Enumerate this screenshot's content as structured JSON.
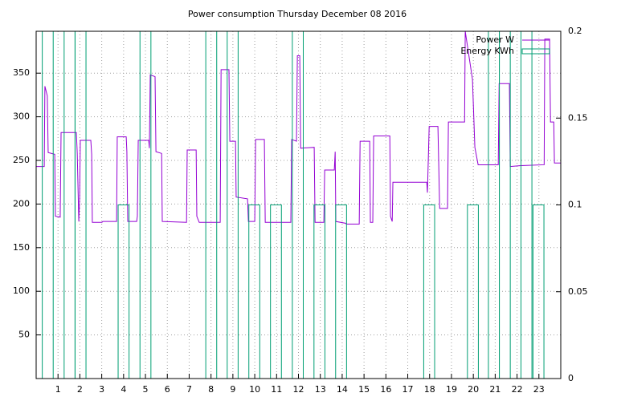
{
  "chart_data": {
    "type": "line-boxes",
    "title": "Power consumption Thursday December 08 2016",
    "xlim": [
      0,
      24
    ],
    "xticks": [
      1,
      2,
      3,
      4,
      5,
      6,
      7,
      8,
      9,
      10,
      11,
      12,
      13,
      14,
      15,
      16,
      17,
      18,
      19,
      20,
      21,
      22,
      23
    ],
    "ylim": [
      0,
      398
    ],
    "yticks": [
      50,
      100,
      150,
      200,
      250,
      300,
      350
    ],
    "y2lim": [
      0,
      0.2
    ],
    "y2ticks": [
      0,
      0.05,
      0.1,
      0.15,
      0.2
    ],
    "grid": true,
    "legend": "top-right",
    "series": [
      {
        "name": "Power W",
        "color": "#9400d3",
        "kind": "line",
        "x": [
          0,
          0.37,
          0.4,
          0.51,
          0.55,
          0.85,
          0.88,
          1.1,
          1.14,
          1.84,
          1.88,
          1.95,
          1.99,
          2.02,
          2.5,
          2.54,
          2.57,
          3.01,
          3.05,
          3.68,
          3.71,
          4.12,
          4.15,
          4.19,
          4.6,
          4.63,
          4.67,
          5.15,
          5.18,
          5.22,
          5.44,
          5.48,
          5.74,
          5.77,
          6.88,
          6.91,
          7.32,
          7.35,
          7.46,
          8.42,
          8.46,
          8.82,
          8.86,
          9.12,
          9.15,
          9.67,
          9.71,
          10.0,
          10.04,
          10.44,
          10.48,
          11.65,
          11.69,
          11.91,
          11.95,
          12.06,
          12.1,
          12.72,
          12.76,
          13.16,
          13.2,
          13.64,
          13.68,
          13.71,
          14.15,
          14.19,
          14.78,
          14.82,
          15.26,
          15.29,
          15.4,
          15.44,
          16.18,
          16.21,
          16.29,
          16.32,
          17.87,
          17.9,
          17.98,
          18.38,
          18.46,
          18.82,
          18.86,
          19.6,
          19.63,
          19.96,
          20.07,
          20.22,
          21.14,
          21.18,
          21.65,
          21.69,
          22.17,
          23.24,
          23.27,
          23.49,
          23.53,
          23.68,
          23.71,
          24
        ],
        "values": [
          243,
          243,
          335,
          324,
          259,
          257,
          186,
          185,
          282,
          282,
          258,
          180,
          208,
          273,
          273,
          257,
          179,
          179,
          180,
          180,
          277,
          277,
          260,
          180,
          180,
          186,
          273,
          273,
          264,
          348,
          346,
          260,
          258,
          180,
          179,
          262,
          262,
          186,
          179,
          179,
          354,
          354,
          272,
          272,
          208,
          206,
          180,
          180,
          274,
          274,
          179,
          179,
          274,
          272,
          370,
          370,
          264,
          265,
          179,
          179,
          239,
          239,
          260,
          180,
          178,
          177,
          177,
          272,
          272,
          179,
          179,
          278,
          278,
          186,
          180,
          225,
          225,
          213,
          289,
          289,
          195,
          195,
          294,
          294,
          398,
          343,
          265,
          245,
          245,
          338,
          338,
          243,
          244,
          245,
          389,
          389,
          294,
          294,
          247,
          247
        ]
      },
      {
        "name": "Energy KWh",
        "color": "#009e73",
        "kind": "boxes",
        "axis": "y2",
        "boxwidth": 0.5,
        "x": [
          0.53,
          1.53,
          2.03,
          4.0,
          5.0,
          8.01,
          8.99,
          9.98,
          10.97,
          11.97,
          12.96,
          13.95,
          17.98,
          19.98,
          20.94,
          21.44,
          22.43,
          22.98
        ],
        "values": [
          0.2,
          0.2,
          0.2,
          0.1,
          0.2,
          0.2,
          0.2,
          0.1,
          0.1,
          0.2,
          0.1,
          0.1,
          0.1,
          0.1,
          0.2,
          0.2,
          0.2,
          0.1
        ]
      }
    ]
  }
}
